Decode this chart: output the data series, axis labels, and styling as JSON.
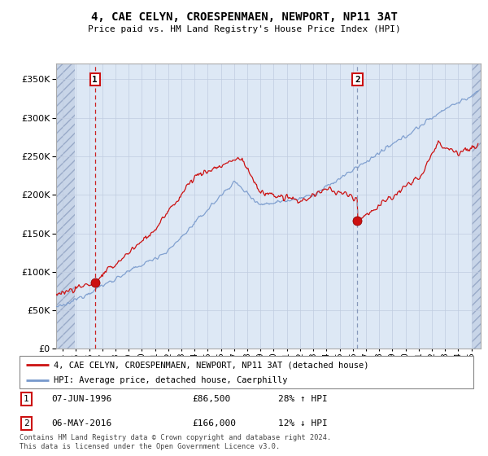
{
  "title": "4, CAE CELYN, CROESPENMAEN, NEWPORT, NP11 3AT",
  "subtitle": "Price paid vs. HM Land Registry's House Price Index (HPI)",
  "ylim": [
    0,
    370000
  ],
  "yticks": [
    0,
    50000,
    100000,
    150000,
    200000,
    250000,
    300000,
    350000
  ],
  "xlim_start": 1993.5,
  "xlim_end": 2025.7,
  "transaction1_date": 1996.44,
  "transaction1_price": 86500,
  "transaction2_date": 2016.35,
  "transaction2_price": 166000,
  "bg_fill_color": "#dde8f5",
  "grid_color": "#c0cce0",
  "red_line_color": "#cc1111",
  "blue_line_color": "#7799cc",
  "legend_label1": "4, CAE CELYN, CROESPENMAEN, NEWPORT, NP11 3AT (detached house)",
  "legend_label2": "HPI: Average price, detached house, Caerphilly",
  "annotation1_date": "07-JUN-1996",
  "annotation1_price": "£86,500",
  "annotation1_hpi": "28% ↑ HPI",
  "annotation2_date": "06-MAY-2016",
  "annotation2_price": "£166,000",
  "annotation2_hpi": "12% ↓ HPI",
  "footer": "Contains HM Land Registry data © Crown copyright and database right 2024.\nThis data is licensed under the Open Government Licence v3.0."
}
